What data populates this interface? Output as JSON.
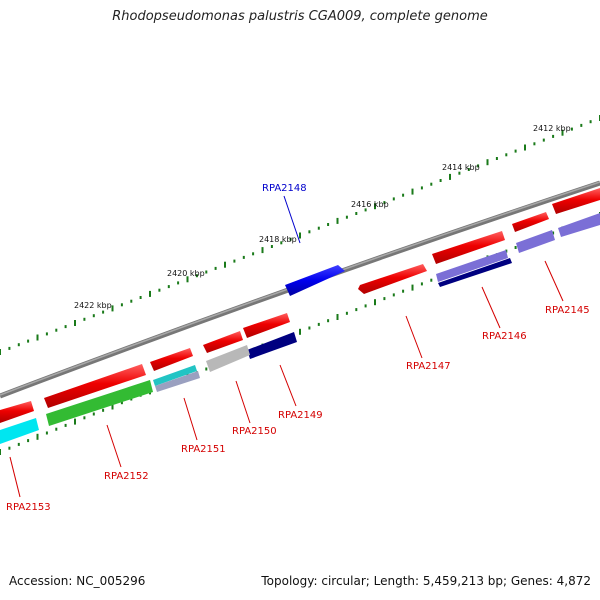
{
  "title": "Rhodopseudomonas palustris CGA009, complete genome",
  "footer": {
    "accession": "Accession: NC_005296",
    "summary": "Topology: circular; Length: 5,459,213 bp; Genes: 4,872"
  },
  "scale_labels": [
    "2412 kbp",
    "2414 kbp",
    "2416 kbp",
    "2418 kbp",
    "2420 kbp",
    "2422 kbp"
  ],
  "gene_labels": {
    "rpa2148": "RPA2148",
    "rpa2145": "RPA2145",
    "rpa2146": "RPA2146",
    "rpa2147": "RPA2147",
    "rpa2149": "RPA2149",
    "rpa2150": "RPA2150",
    "rpa2151": "RPA2151",
    "rpa2152": "RPA2152",
    "rpa2153": "RPA2153"
  },
  "colors": {
    "backbone": "#777777",
    "forward_cds": "#ee0000",
    "scale_ticks": "#1a7a1a",
    "highlight": "#0000ee",
    "reverse_purple": "#7b6fd6",
    "reverse_navy": "#000080",
    "reverse_gray": "#b8b8b8",
    "reverse_teal": "#22c4c4",
    "reverse_green": "#33bb33",
    "reverse_cyan": "#00e6f0",
    "label_red": "#d40000",
    "label_blue": "#0000cc"
  }
}
